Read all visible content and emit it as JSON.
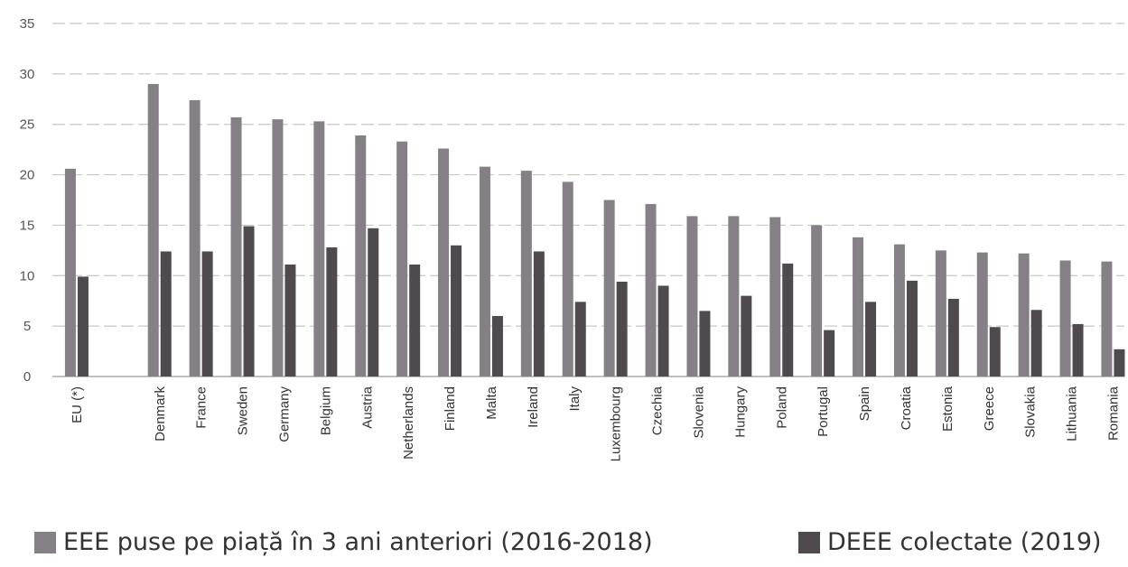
{
  "chart_data": {
    "type": "bar",
    "title": "",
    "xlabel": "",
    "ylabel": "",
    "ylim": [
      0,
      35
    ],
    "yticks": [
      0,
      5,
      10,
      15,
      20,
      25,
      30,
      35
    ],
    "grid": true,
    "legend_position": "bottom",
    "categories": [
      "EU (*)",
      "",
      "Denmark",
      "France",
      "Sweden",
      "Germany",
      "Belgium",
      "Austria",
      "Netherlands",
      "Finland",
      "Malta",
      "Ireland",
      "Italy",
      "Luxembourg",
      "Czechia",
      "Slovenia",
      "Hungary",
      "Poland",
      "Portugal",
      "Spain",
      "Croatia",
      "Estonia",
      "Greece",
      "Slovakia",
      "Lithuania",
      "Romania"
    ],
    "series": [
      {
        "name": "EEE puse pe piață în 3 ani anteriori (2016-2018)",
        "color": "#858085",
        "values": [
          20.6,
          null,
          29.0,
          27.4,
          25.7,
          25.5,
          25.3,
          23.9,
          23.3,
          22.6,
          20.8,
          20.4,
          19.3,
          17.5,
          17.1,
          15.9,
          15.9,
          15.8,
          15.0,
          13.8,
          13.1,
          12.5,
          12.3,
          12.2,
          11.5,
          11.4
        ]
      },
      {
        "name": "DEEE colectate (2019)",
        "color": "#4f4a4e",
        "values": [
          9.9,
          null,
          12.4,
          12.4,
          14.9,
          11.1,
          12.8,
          14.7,
          11.1,
          13.0,
          6.0,
          12.4,
          7.4,
          9.4,
          9.0,
          6.5,
          8.0,
          11.2,
          4.6,
          7.4,
          9.5,
          7.7,
          4.9,
          6.6,
          5.2,
          2.7
        ]
      }
    ]
  }
}
